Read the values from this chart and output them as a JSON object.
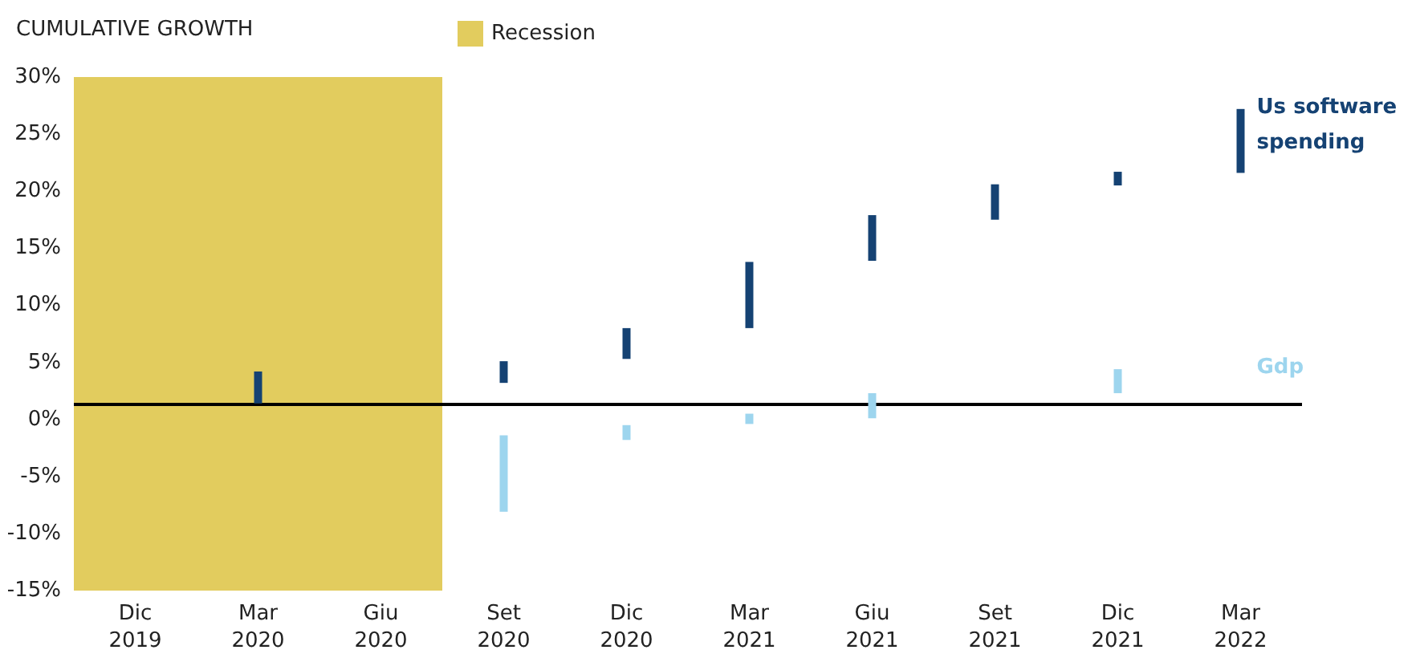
{
  "chart_data": {
    "type": "bar",
    "ylabel": "CUMULATIVE GROWTH",
    "categories": [
      "Dic 2019",
      "Mar 2020",
      "Giu 2020",
      "Set 2020",
      "Dic 2020",
      "Mar 2021",
      "Giu 2021",
      "Set 2021",
      "Dic 2021",
      "Mar 2022"
    ],
    "series": [
      {
        "name": "Us software spending",
        "color": "#154273",
        "base": [
          null,
          1.4,
          null,
          3.2,
          5.3,
          8.0,
          13.9,
          17.5,
          20.5,
          21.6
        ],
        "values": [
          null,
          2.8,
          null,
          1.9,
          2.7,
          5.8,
          4.0,
          3.1,
          1.2,
          5.6
        ]
      },
      {
        "name": "Gdp",
        "color": "#9dd5ee",
        "base": [
          null,
          null,
          null,
          -8.1,
          -1.8,
          -0.4,
          0.1,
          null,
          2.3,
          null
        ],
        "values": [
          null,
          null,
          null,
          6.7,
          1.3,
          0.9,
          2.2,
          null,
          2.1,
          null
        ]
      }
    ],
    "ylim": [
      -15,
      30
    ],
    "yticks": [
      {
        "value": -15,
        "label": "-15%"
      },
      {
        "value": -10,
        "label": "-10%"
      },
      {
        "value": -5,
        "label": "-5%"
      },
      {
        "value": 0,
        "label": "0%"
      },
      {
        "value": 5,
        "label": "5%"
      },
      {
        "value": 10,
        "label": "10%"
      },
      {
        "value": 15,
        "label": "15%"
      },
      {
        "value": 20,
        "label": "20%"
      },
      {
        "value": 25,
        "label": "25%"
      },
      {
        "value": 30,
        "label": "30%"
      }
    ],
    "ref_lines": [
      {
        "axis": "y",
        "value": 1.4,
        "color": "#000000"
      }
    ],
    "bands": [
      {
        "axis": "x",
        "from": "Dic 2019",
        "to": "Giu 2020",
        "label": "Recession",
        "color": "#e2cc5e"
      }
    ],
    "legend": "top",
    "grid": false
  }
}
